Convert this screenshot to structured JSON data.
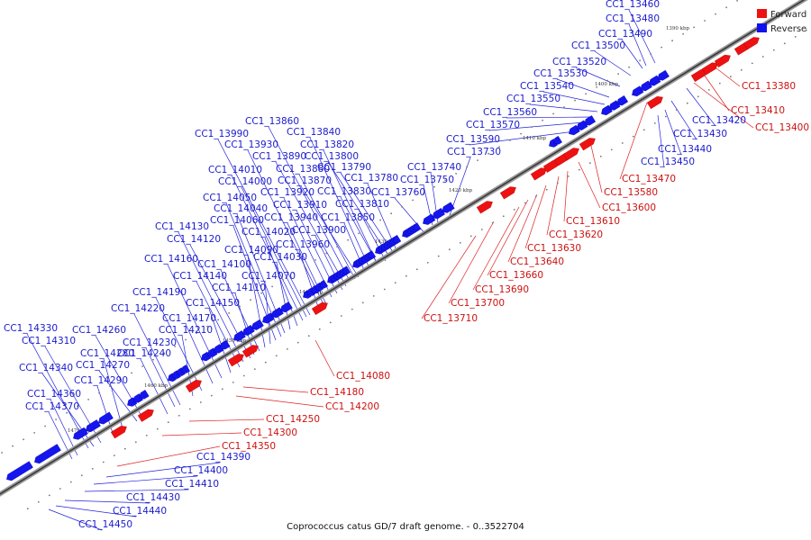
{
  "caption": "Coprococcus catus GD/7 draft genome. - 0..3522704",
  "legend": {
    "forward": {
      "label": "Forward",
      "color": "#ee1111"
    },
    "reverse": {
      "label": "Reverse",
      "color": "#1111ee"
    }
  },
  "ticks": [
    "1390 kbp",
    "1400 kbp",
    "1410 kbp",
    "1420 kbp",
    "1430 kbp",
    "1440 kbp",
    "1450 kbp",
    "1460 kbp",
    "1470 kbp"
  ],
  "reverse_genes": [
    "CC1_13460",
    "CC1_13480",
    "CC1_13490",
    "CC1_13500",
    "CC1_13520",
    "CC1_13530",
    "CC1_13540",
    "CC1_13550",
    "CC1_13560",
    "CC1_13570",
    "CC1_13590",
    "CC1_13730",
    "CC1_13740",
    "CC1_13750",
    "CC1_13760",
    "CC1_13780",
    "CC1_13790",
    "CC1_13800",
    "CC1_13810",
    "CC1_13820",
    "CC1_13830",
    "CC1_13840",
    "CC1_13850",
    "CC1_13860",
    "CC1_13870",
    "CC1_13880",
    "CC1_13890",
    "CC1_13900",
    "CC1_13910",
    "CC1_13920",
    "CC1_13930",
    "CC1_13940",
    "CC1_13960",
    "CC1_13990",
    "CC1_14000",
    "CC1_14010",
    "CC1_14020",
    "CC1_14030",
    "CC1_14040",
    "CC1_14050",
    "CC1_14060",
    "CC1_14070",
    "CC1_14090",
    "CC1_14100",
    "CC1_14110",
    "CC1_14120",
    "CC1_14130",
    "CC1_14140",
    "CC1_14150",
    "CC1_14160",
    "CC1_14170",
    "CC1_14190",
    "CC1_14210",
    "CC1_14220",
    "CC1_14230",
    "CC1_14240",
    "CC1_14260",
    "CC1_14270",
    "CC1_14280",
    "CC1_14290",
    "CC1_14310",
    "CC1_14330",
    "CC1_14340",
    "CC1_14360",
    "CC1_14370",
    "CC1_13420",
    "CC1_13430",
    "CC1_13440",
    "CC1_13450",
    "CC1_14390",
    "CC1_14400",
    "CC1_14410",
    "CC1_14430",
    "CC1_14440",
    "CC1_14450"
  ],
  "forward_genes": [
    "CC1_13380",
    "CC1_13410",
    "CC1_13400",
    "CC1_13470",
    "CC1_13580",
    "CC1_13600",
    "CC1_13610",
    "CC1_13620",
    "CC1_13630",
    "CC1_13640",
    "CC1_13660",
    "CC1_13690",
    "CC1_13700",
    "CC1_13710",
    "CC1_14080",
    "CC1_14180",
    "CC1_14200",
    "CC1_14250",
    "CC1_14300",
    "CC1_14350"
  ]
}
